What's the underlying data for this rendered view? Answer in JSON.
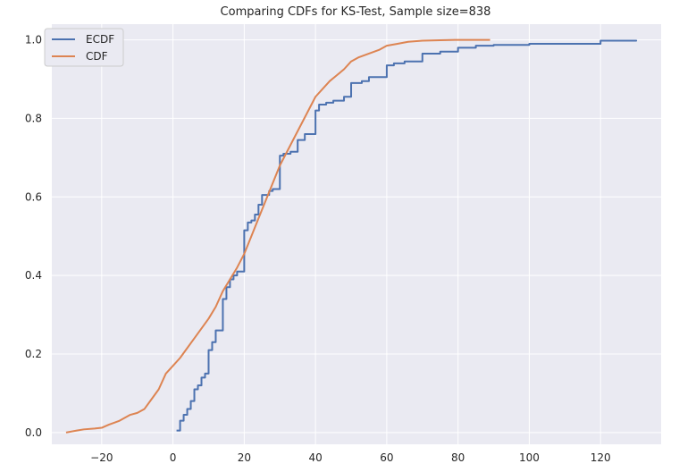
{
  "chart_data": {
    "type": "line",
    "title": "Comparing CDFs for KS-Test, Sample size=838",
    "xlabel": "",
    "ylabel": "",
    "xlim": [
      -34,
      137
    ],
    "ylim": [
      -0.03,
      1.04
    ],
    "x_ticks": [
      -20,
      0,
      20,
      40,
      60,
      80,
      100,
      120
    ],
    "y_ticks": [
      0.0,
      0.2,
      0.4,
      0.6,
      0.8,
      1.0
    ],
    "x_tick_labels": [
      "−20",
      "0",
      "20",
      "40",
      "60",
      "80",
      "100",
      "120"
    ],
    "y_tick_labels": [
      "0.0",
      "0.2",
      "0.4",
      "0.6",
      "0.8",
      "1.0"
    ],
    "grid": true,
    "legend_position": "top-left",
    "background_color": "#eaeaf2",
    "series": [
      {
        "name": "ECDF",
        "color": "#4c72b0",
        "step": true,
        "x": [
          1,
          2,
          3,
          4,
          5,
          6,
          7,
          8,
          9,
          10,
          11,
          12,
          14,
          15,
          16,
          17,
          18,
          20,
          21,
          22,
          23,
          24,
          25,
          27,
          28,
          30,
          31,
          33,
          35,
          37,
          40,
          41,
          43,
          45,
          48,
          50,
          53,
          55,
          60,
          62,
          65,
          70,
          75,
          80,
          85,
          90,
          100,
          120,
          130
        ],
        "y": [
          0.005,
          0.03,
          0.045,
          0.06,
          0.08,
          0.11,
          0.12,
          0.14,
          0.15,
          0.21,
          0.23,
          0.26,
          0.34,
          0.37,
          0.39,
          0.4,
          0.41,
          0.515,
          0.535,
          0.54,
          0.555,
          0.58,
          0.605,
          0.615,
          0.62,
          0.705,
          0.71,
          0.715,
          0.745,
          0.76,
          0.82,
          0.835,
          0.84,
          0.845,
          0.855,
          0.89,
          0.895,
          0.905,
          0.935,
          0.94,
          0.945,
          0.965,
          0.97,
          0.98,
          0.985,
          0.987,
          0.99,
          0.998,
          1.0
        ]
      },
      {
        "name": "CDF",
        "color": "#dd8452",
        "step": false,
        "x": [
          -30,
          -27,
          -25,
          -22,
          -20,
          -18,
          -15,
          -12,
          -10,
          -8,
          -6,
          -4,
          -2,
          0,
          2,
          4,
          6,
          8,
          10,
          12,
          14,
          16,
          18,
          20,
          22,
          24,
          26,
          28,
          30,
          32,
          34,
          36,
          38,
          40,
          42,
          44,
          46,
          48,
          50,
          52,
          55,
          58,
          60,
          63,
          66,
          70,
          75,
          80,
          85,
          89
        ],
        "y": [
          0.0,
          0.005,
          0.008,
          0.01,
          0.012,
          0.02,
          0.03,
          0.045,
          0.05,
          0.06,
          0.085,
          0.11,
          0.15,
          0.17,
          0.19,
          0.215,
          0.24,
          0.265,
          0.29,
          0.32,
          0.36,
          0.39,
          0.42,
          0.455,
          0.5,
          0.545,
          0.59,
          0.635,
          0.68,
          0.715,
          0.75,
          0.785,
          0.82,
          0.855,
          0.875,
          0.895,
          0.91,
          0.925,
          0.945,
          0.955,
          0.965,
          0.975,
          0.985,
          0.99,
          0.995,
          0.998,
          0.999,
          1.0,
          1.0,
          1.0
        ]
      }
    ]
  }
}
